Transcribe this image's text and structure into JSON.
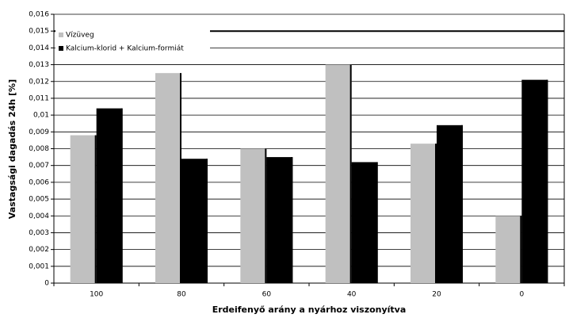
{
  "chart_data": {
    "type": "bar",
    "x_label": "Erdeifenyő arány a nyárhoz viszonyítva",
    "y_label": "Vastagsági dagadás 24h [%]",
    "categories": [
      "100",
      "80",
      "60",
      "40",
      "20",
      "0"
    ],
    "series": [
      {
        "name": "Vízüveg",
        "color": "#c0c0c0",
        "values": [
          0.0088,
          0.0125,
          0.008,
          0.013,
          0.0083,
          0.004
        ]
      },
      {
        "name": "Kalcium-klorid + Kalcium-formiát",
        "color": "#000000",
        "values": [
          0.0104,
          0.0074,
          0.0075,
          0.0072,
          0.0094,
          0.0121
        ]
      }
    ],
    "ylim": [
      0,
      0.016
    ],
    "yticks": [
      0,
      {
        "value": 0.001,
        "label": "0,001"
      },
      {
        "value": 0.002,
        "label": "0,002"
      },
      {
        "value": 0.003,
        "label": "0,003"
      },
      {
        "value": 0.004,
        "label": "0,004"
      },
      {
        "value": 0.005,
        "label": "0,005"
      },
      {
        "value": 0.006,
        "label": "0,006"
      },
      {
        "value": 0.007,
        "label": "0,007"
      },
      {
        "value": 0.008,
        "label": "0,008"
      },
      {
        "value": 0.009,
        "label": "0,009"
      },
      {
        "value": 0.01,
        "label": "0,01"
      },
      {
        "value": 0.011,
        "label": "0,011"
      },
      {
        "value": 0.012,
        "label": "0,012"
      },
      {
        "value": 0.013,
        "label": "0,013"
      },
      {
        "value": 0.014,
        "label": "0,014"
      },
      {
        "value": 0.015,
        "label": "0,015"
      },
      {
        "value": 0.016,
        "label": "0,016"
      }
    ],
    "reference_line": 0.015,
    "grid": true,
    "legend": "upper left"
  }
}
